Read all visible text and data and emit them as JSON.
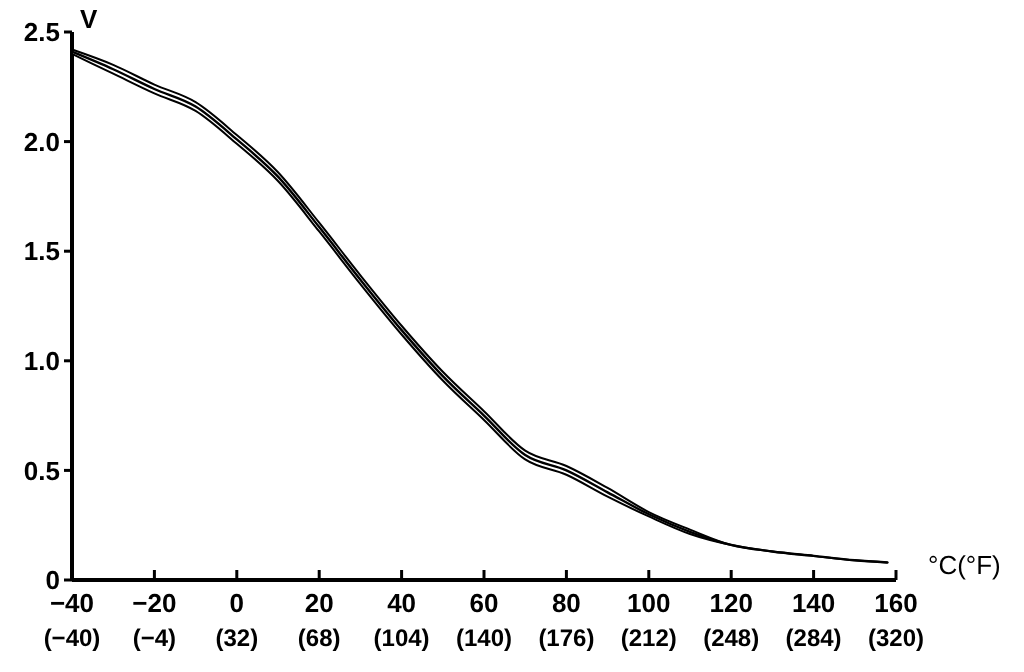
{
  "chart_data": {
    "type": "line",
    "xlabel": "°C(°F)",
    "ylabel": "V",
    "x": [
      -40,
      -30,
      -20,
      -10,
      0,
      10,
      20,
      30,
      40,
      50,
      60,
      70,
      80,
      90,
      100,
      110,
      120,
      130,
      140,
      150,
      158
    ],
    "series": [
      {
        "color": "#000000",
        "values": [
          2.41,
          2.33,
          2.24,
          2.16,
          2.01,
          1.84,
          1.61,
          1.37,
          1.14,
          0.93,
          0.75,
          0.57,
          0.5,
          0.4,
          0.3,
          0.22,
          0.16,
          0.13,
          0.11,
          0.09,
          0.08
        ],
        "lower": [
          2.4,
          2.31,
          2.22,
          2.14,
          1.99,
          1.82,
          1.59,
          1.35,
          1.12,
          0.91,
          0.73,
          0.55,
          0.48,
          0.38,
          0.29,
          0.21,
          0.16,
          0.13,
          0.11,
          0.09,
          0.08
        ],
        "upper": [
          2.42,
          2.35,
          2.26,
          2.18,
          2.03,
          1.86,
          1.63,
          1.39,
          1.16,
          0.95,
          0.77,
          0.59,
          0.52,
          0.42,
          0.31,
          0.23,
          0.16,
          0.13,
          0.11,
          0.09,
          0.08
        ]
      }
    ],
    "xlim": [
      -40,
      160
    ],
    "ylim": [
      0,
      2.5
    ],
    "xticks": [
      -40,
      -20,
      0,
      20,
      40,
      60,
      80,
      100,
      120,
      140,
      160
    ],
    "x2lim": [
      -40,
      320
    ],
    "x2ticks": [
      {
        "value": -40,
        "label": "(−40)"
      },
      {
        "value": -4,
        "label": "(−4)"
      },
      {
        "value": 32,
        "label": "(32)"
      },
      {
        "value": 68,
        "label": "(68)"
      },
      {
        "value": 104,
        "label": "(104)"
      },
      {
        "value": 140,
        "label": "(140)"
      },
      {
        "value": 176,
        "label": "(176)"
      },
      {
        "value": 212,
        "label": "(212)"
      },
      {
        "value": 248,
        "label": "(248)"
      },
      {
        "value": 284,
        "label": "(284)"
      },
      {
        "value": 320,
        "label": "(320)"
      }
    ],
    "yticks": [
      0,
      {
        "value": 0.5,
        "label": "0.5"
      },
      {
        "value": 1,
        "label": "1.0"
      },
      {
        "value": 1.5,
        "label": "1.5"
      },
      {
        "value": 2,
        "label": "2.0"
      },
      {
        "value": 2.5,
        "label": "2.5"
      }
    ],
    "marker": "none",
    "line_style": "solid"
  }
}
